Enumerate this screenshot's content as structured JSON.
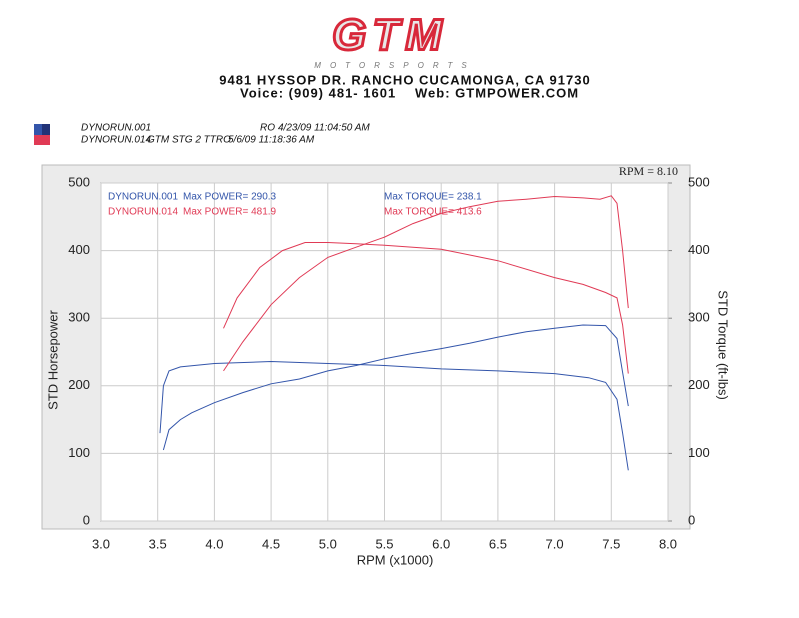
{
  "logo": "GTM",
  "logo_sub": "MOTORSPORTS",
  "header": {
    "address": "9481 HYSSOP DR. RANCHO CUCAMONGA, CA 91730",
    "voice": "Voice: (909) 481- 1601",
    "web": "Web: GTMPOWER.COM"
  },
  "runs": [
    {
      "file": "DYNORUN.001",
      "note": "RO",
      "date": "4/23/09 11:04:50 AM"
    },
    {
      "file": "DYNORUN.014",
      "note": "GTM STG 2 TTRO",
      "date": "5/6/09 11:18:36 AM"
    }
  ],
  "chart_data": {
    "type": "line",
    "rpm_note": "RPM = 8.10",
    "xlabel": "RPM (x1000)",
    "ylabel": "STD Horsepower",
    "y2label": "STD Torque (ft-lbs)",
    "xlim": [
      3,
      8
    ],
    "xticks": [
      {
        "value": 3,
        "label": "3.0"
      },
      3.5,
      {
        "value": 4,
        "label": "4.0"
      },
      4.5,
      {
        "value": 5,
        "label": "5.0"
      },
      5.5,
      {
        "value": 6,
        "label": "6.0"
      },
      6.5,
      {
        "value": 7,
        "label": "7.0"
      },
      7.5,
      {
        "value": 8,
        "label": "8.0"
      }
    ],
    "ylim": [
      0,
      500
    ],
    "yticks": [
      0,
      100,
      200,
      300,
      400,
      500
    ],
    "y2lim": [
      0,
      500
    ],
    "y2ticks": [
      0,
      100,
      200,
      300,
      400,
      500
    ],
    "grid": true,
    "legend": [
      {
        "run": "DYNORUN.001",
        "power": "Max POWER= 290.3",
        "torque": "Max TORQUE= 238.1",
        "color": "#3355aa"
      },
      {
        "run": "DYNORUN.014",
        "power": "Max POWER= 481.9",
        "torque": "Max TORQUE= 413.6",
        "color": "#e03a55"
      }
    ],
    "series": [
      {
        "color": "#3355aa",
        "x": [
          3.55,
          3.6,
          3.7,
          3.8,
          4.0,
          4.25,
          4.5,
          4.75,
          5.0,
          5.25,
          5.5,
          5.75,
          6.0,
          6.25,
          6.5,
          6.75,
          7.0,
          7.25,
          7.45,
          7.55,
          7.6,
          7.65
        ],
        "values": [
          105,
          135,
          150,
          160,
          175,
          190,
          203,
          210,
          222,
          230,
          240,
          248,
          255,
          263,
          272,
          280,
          285,
          290,
          289,
          270,
          220,
          170
        ]
      },
      {
        "color": "#3355aa",
        "axis": "y2",
        "x": [
          3.52,
          3.55,
          3.6,
          3.7,
          4.0,
          4.5,
          5.0,
          5.5,
          6.0,
          6.5,
          7.0,
          7.3,
          7.45,
          7.55,
          7.6,
          7.65
        ],
        "values": [
          130,
          200,
          222,
          228,
          233,
          236,
          233,
          230,
          225,
          222,
          218,
          212,
          205,
          180,
          130,
          75
        ]
      },
      {
        "color": "#e03a55",
        "x": [
          4.08,
          4.25,
          4.5,
          4.75,
          5.0,
          5.25,
          5.5,
          5.75,
          6.0,
          6.25,
          6.5,
          6.75,
          7.0,
          7.25,
          7.4,
          7.5,
          7.55,
          7.6,
          7.65
        ],
        "values": [
          222,
          265,
          320,
          360,
          390,
          405,
          420,
          440,
          455,
          465,
          473,
          476,
          480,
          478,
          476,
          481,
          470,
          400,
          315
        ]
      },
      {
        "color": "#e03a55",
        "axis": "y2",
        "x": [
          4.08,
          4.2,
          4.4,
          4.6,
          4.8,
          5.0,
          5.25,
          5.5,
          6.0,
          6.5,
          7.0,
          7.25,
          7.45,
          7.55,
          7.6,
          7.65
        ],
        "values": [
          285,
          330,
          375,
          400,
          412,
          412,
          410,
          408,
          402,
          385,
          360,
          350,
          338,
          330,
          290,
          218
        ]
      }
    ]
  }
}
